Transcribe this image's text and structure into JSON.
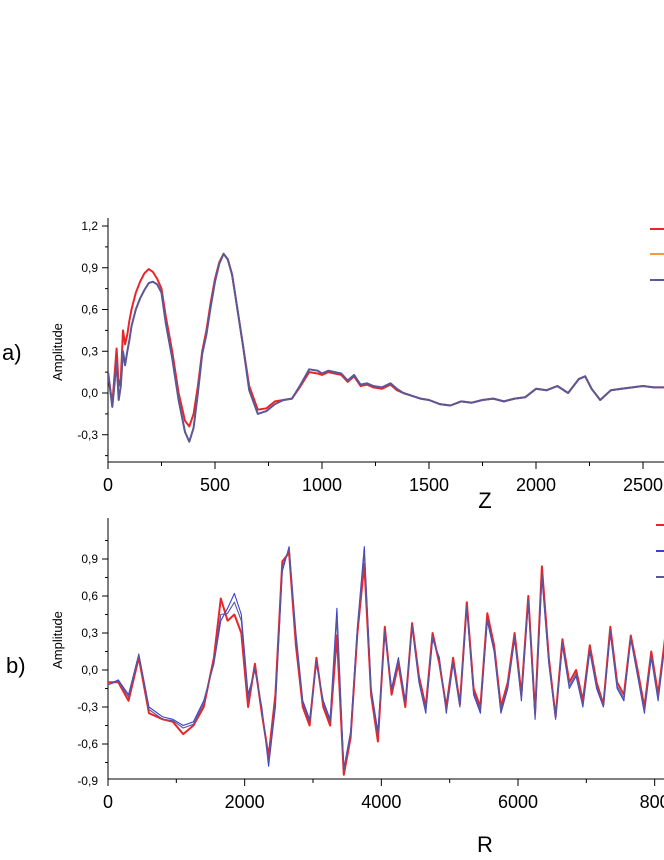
{
  "panels": [
    {
      "label": "a)"
    },
    {
      "label": "b)"
    }
  ],
  "colors": {
    "red": "#e8262a",
    "orange": "#f39a3c",
    "blue": "#3a3fd6",
    "purple": "#5b5898"
  },
  "chart_data": [
    {
      "type": "line",
      "title": "",
      "xlabel": "Z",
      "ylabel": "Amplitude",
      "xlim": [
        0,
        2600
      ],
      "ylim": [
        -0.5,
        1.2
      ],
      "xticks": [
        "0",
        "500",
        "1000",
        "1500",
        "2000",
        "2500"
      ],
      "yticks": [
        "1,2",
        "0,9",
        "0,6",
        "0,3",
        "0,0",
        "-0,3"
      ],
      "legend": "top-right, clipped",
      "series": [
        {
          "color": "red",
          "x": [
            0,
            20,
            40,
            50,
            60,
            70,
            80,
            90,
            100,
            110,
            130,
            150,
            170,
            190,
            210,
            230,
            250,
            270,
            300,
            330,
            360,
            380,
            400,
            420,
            440,
            460,
            480,
            500,
            520,
            540,
            560,
            580,
            600,
            630,
            660,
            700,
            740,
            780,
            820,
            860,
            900,
            940,
            980,
            1000,
            1030,
            1060,
            1090,
            1120,
            1150,
            1180,
            1210,
            1240,
            1280,
            1320,
            1350,
            1380,
            1420,
            1460,
            1500,
            1550,
            1600,
            1650,
            1700,
            1750,
            1800,
            1850,
            1900,
            1950,
            2000,
            2050,
            2100,
            2150,
            2200,
            2230,
            2260,
            2300,
            2350,
            2400,
            2450,
            2500,
            2550,
            2600
          ],
          "y": [
            0.15,
            -0.08,
            0.32,
            0.05,
            0.1,
            0.45,
            0.35,
            0.42,
            0.52,
            0.6,
            0.72,
            0.8,
            0.86,
            0.89,
            0.87,
            0.82,
            0.75,
            0.55,
            0.3,
            0.0,
            -0.2,
            -0.24,
            -0.15,
            0.05,
            0.3,
            0.45,
            0.65,
            0.82,
            0.94,
            1.0,
            0.96,
            0.85,
            0.65,
            0.35,
            0.05,
            -0.12,
            -0.11,
            -0.06,
            -0.05,
            -0.04,
            0.05,
            0.15,
            0.14,
            0.13,
            0.15,
            0.14,
            0.13,
            0.08,
            0.12,
            0.05,
            0.06,
            0.04,
            0.03,
            0.06,
            0.02,
            0.0,
            -0.02,
            -0.04,
            -0.05,
            -0.08,
            -0.09,
            -0.06,
            -0.07,
            -0.05,
            -0.04,
            -0.06,
            -0.04,
            -0.03,
            0.03,
            0.02,
            0.05,
            0.0,
            0.1,
            0.12,
            0.03,
            -0.05,
            0.02,
            0.03,
            0.04,
            0.05,
            0.04,
            0.04
          ]
        },
        {
          "color": "orange",
          "x": [
            0,
            20,
            40,
            50,
            60,
            70,
            80,
            90,
            100,
            110,
            130,
            150,
            170,
            190,
            210,
            230,
            250,
            270,
            300,
            330,
            360,
            380,
            400,
            420,
            440,
            460,
            480,
            500,
            520,
            540,
            560,
            580,
            600,
            630,
            660,
            700,
            740,
            780,
            820,
            860,
            900,
            940,
            980,
            1000,
            1030,
            1060,
            1090,
            1120,
            1150,
            1180,
            1210,
            1240,
            1280,
            1320,
            1350,
            1380,
            1420,
            1460,
            1500,
            1550,
            1600,
            1650,
            1700,
            1750,
            1800,
            1850,
            1900,
            1950,
            2000,
            2050,
            2100,
            2150,
            2200,
            2230,
            2260,
            2300,
            2350,
            2400,
            2450,
            2500,
            2550,
            2600
          ],
          "y": [
            0.15,
            -0.1,
            0.22,
            -0.05,
            0.05,
            0.3,
            0.2,
            0.3,
            0.38,
            0.48,
            0.6,
            0.68,
            0.74,
            0.79,
            0.8,
            0.78,
            0.72,
            0.5,
            0.25,
            -0.05,
            -0.28,
            -0.35,
            -0.25,
            0.0,
            0.28,
            0.42,
            0.62,
            0.8,
            0.93,
            1.0,
            0.96,
            0.85,
            0.65,
            0.35,
            0.02,
            -0.15,
            -0.13,
            -0.08,
            -0.05,
            -0.04,
            0.06,
            0.17,
            0.16,
            0.14,
            0.16,
            0.15,
            0.14,
            0.09,
            0.13,
            0.06,
            0.07,
            0.05,
            0.04,
            0.07,
            0.03,
            0.0,
            -0.02,
            -0.04,
            -0.05,
            -0.08,
            -0.09,
            -0.06,
            -0.07,
            -0.05,
            -0.04,
            -0.06,
            -0.04,
            -0.03,
            0.03,
            0.02,
            0.05,
            0.0,
            0.1,
            0.12,
            0.03,
            -0.05,
            0.02,
            0.03,
            0.04,
            0.05,
            0.04,
            0.04
          ]
        },
        {
          "color": "purple",
          "x": [
            0,
            20,
            40,
            50,
            60,
            70,
            80,
            90,
            100,
            110,
            130,
            150,
            170,
            190,
            210,
            230,
            250,
            270,
            300,
            330,
            360,
            380,
            400,
            420,
            440,
            460,
            480,
            500,
            520,
            540,
            560,
            580,
            600,
            630,
            660,
            700,
            740,
            780,
            820,
            860,
            900,
            940,
            980,
            1000,
            1030,
            1060,
            1090,
            1120,
            1150,
            1180,
            1210,
            1240,
            1280,
            1320,
            1350,
            1380,
            1420,
            1460,
            1500,
            1550,
            1600,
            1650,
            1700,
            1750,
            1800,
            1850,
            1900,
            1950,
            2000,
            2050,
            2100,
            2150,
            2200,
            2230,
            2260,
            2300,
            2350,
            2400,
            2450,
            2500,
            2550,
            2600
          ],
          "y": [
            0.15,
            -0.1,
            0.22,
            -0.05,
            0.05,
            0.3,
            0.2,
            0.3,
            0.38,
            0.48,
            0.6,
            0.68,
            0.74,
            0.79,
            0.8,
            0.78,
            0.72,
            0.5,
            0.25,
            -0.05,
            -0.28,
            -0.35,
            -0.25,
            0.0,
            0.28,
            0.42,
            0.62,
            0.8,
            0.93,
            1.0,
            0.96,
            0.85,
            0.65,
            0.35,
            0.02,
            -0.15,
            -0.13,
            -0.08,
            -0.05,
            -0.04,
            0.06,
            0.17,
            0.16,
            0.14,
            0.16,
            0.15,
            0.14,
            0.09,
            0.13,
            0.06,
            0.07,
            0.05,
            0.04,
            0.07,
            0.03,
            0.0,
            -0.02,
            -0.04,
            -0.05,
            -0.08,
            -0.09,
            -0.06,
            -0.07,
            -0.05,
            -0.04,
            -0.06,
            -0.04,
            -0.03,
            0.03,
            0.02,
            0.05,
            0.0,
            0.1,
            0.12,
            0.03,
            -0.05,
            0.02,
            0.03,
            0.04,
            0.05,
            0.04,
            0.04
          ]
        }
      ]
    },
    {
      "type": "line",
      "title": "",
      "xlabel": "R",
      "ylabel": "Amplitude",
      "xlim": [
        0,
        8200
      ],
      "ylim": [
        -0.9,
        1.05
      ],
      "xticks": [
        "0",
        "2000",
        "4000",
        "6000",
        "800"
      ],
      "yticks": [
        "0,9",
        "0,6",
        "0,3",
        "0,0",
        "-0,3",
        "-0,6",
        "-0,9"
      ],
      "legend": "top-right, clipped",
      "series": [
        {
          "color": "red",
          "x": [
            0,
            150,
            300,
            450,
            600,
            800,
            950,
            1100,
            1250,
            1400,
            1550,
            1650,
            1750,
            1850,
            1950,
            2050,
            2150,
            2250,
            2350,
            2450,
            2550,
            2650,
            2750,
            2850,
            2950,
            3050,
            3150,
            3250,
            3350,
            3450,
            3550,
            3650,
            3750,
            3850,
            3950,
            4050,
            4150,
            4250,
            4350,
            4450,
            4550,
            4650,
            4750,
            4850,
            4950,
            5050,
            5150,
            5250,
            5350,
            5450,
            5550,
            5650,
            5750,
            5850,
            5950,
            6050,
            6150,
            6250,
            6350,
            6450,
            6550,
            6650,
            6750,
            6850,
            6950,
            7050,
            7150,
            7250,
            7350,
            7450,
            7550,
            7650,
            7750,
            7850,
            7950,
            8050,
            8150,
            8200
          ],
          "y": [
            -0.1,
            -0.1,
            -0.25,
            0.1,
            -0.35,
            -0.4,
            -0.42,
            -0.52,
            -0.45,
            -0.3,
            0.1,
            0.58,
            0.4,
            0.45,
            0.3,
            -0.3,
            0.05,
            -0.35,
            -0.7,
            -0.2,
            0.88,
            0.95,
            0.2,
            -0.3,
            -0.45,
            0.1,
            -0.3,
            -0.45,
            0.28,
            -0.85,
            -0.55,
            0.3,
            0.86,
            -0.2,
            -0.58,
            0.35,
            -0.2,
            0.05,
            -0.3,
            0.38,
            -0.05,
            -0.3,
            0.3,
            0.05,
            -0.3,
            0.1,
            -0.28,
            0.55,
            -0.15,
            -0.3,
            0.46,
            0.2,
            -0.3,
            -0.1,
            0.3,
            -0.2,
            0.6,
            -0.35,
            0.84,
            0.1,
            -0.38,
            0.25,
            -0.1,
            0.0,
            -0.25,
            0.2,
            -0.1,
            -0.28,
            0.35,
            -0.1,
            -0.2,
            0.28,
            0.0,
            -0.3,
            0.15,
            -0.2,
            0.25,
            0.2
          ]
        },
        {
          "color": "blue",
          "x": [
            0,
            150,
            300,
            450,
            600,
            800,
            950,
            1100,
            1250,
            1400,
            1550,
            1650,
            1750,
            1850,
            1950,
            2050,
            2150,
            2250,
            2350,
            2450,
            2550,
            2650,
            2750,
            2850,
            2950,
            3050,
            3150,
            3250,
            3350,
            3450,
            3550,
            3650,
            3750,
            3850,
            3950,
            4050,
            4150,
            4250,
            4350,
            4450,
            4550,
            4650,
            4750,
            4850,
            4950,
            5050,
            5150,
            5250,
            5350,
            5450,
            5550,
            5650,
            5750,
            5850,
            5950,
            6050,
            6150,
            6250,
            6350,
            6450,
            6550,
            6650,
            6750,
            6850,
            6950,
            7050,
            7150,
            7250,
            7350,
            7450,
            7550,
            7650,
            7750,
            7850,
            7950,
            8050,
            8150,
            8200
          ],
          "y": [
            -0.12,
            -0.08,
            -0.2,
            0.13,
            -0.3,
            -0.38,
            -0.4,
            -0.45,
            -0.42,
            -0.25,
            0.05,
            0.4,
            0.5,
            0.62,
            0.45,
            -0.2,
            0.0,
            -0.3,
            -0.78,
            -0.3,
            0.8,
            1.0,
            0.3,
            -0.25,
            -0.4,
            0.05,
            -0.25,
            -0.4,
            0.5,
            -0.8,
            -0.5,
            0.35,
            1.0,
            -0.15,
            -0.5,
            0.3,
            -0.15,
            0.1,
            -0.25,
            0.35,
            -0.1,
            -0.35,
            0.25,
            0.1,
            -0.35,
            0.05,
            -0.3,
            0.5,
            -0.2,
            -0.35,
            0.4,
            0.15,
            -0.35,
            -0.15,
            0.25,
            -0.25,
            0.55,
            -0.4,
            0.75,
            0.05,
            -0.4,
            0.2,
            -0.15,
            -0.05,
            -0.3,
            0.15,
            -0.15,
            -0.3,
            0.3,
            -0.15,
            -0.25,
            0.25,
            -0.05,
            -0.35,
            0.1,
            -0.25,
            0.2,
            0.15
          ]
        },
        {
          "color": "purple",
          "x": [
            0,
            150,
            300,
            450,
            600,
            800,
            950,
            1100,
            1250,
            1400,
            1550,
            1650,
            1750,
            1850,
            1950,
            2050,
            2150,
            2250,
            2350,
            2450,
            2550,
            2650,
            2750,
            2850,
            2950,
            3050,
            3150,
            3250,
            3350,
            3450,
            3550,
            3650,
            3750,
            3850,
            3950,
            4050,
            4150,
            4250,
            4350,
            4450,
            4550,
            4650,
            4750,
            4850,
            4950,
            5050,
            5150,
            5250,
            5350,
            5450,
            5550,
            5650,
            5750,
            5850,
            5950,
            6050,
            6150,
            6250,
            6350,
            6450,
            6550,
            6650,
            6750,
            6850,
            6950,
            7050,
            7150,
            7250,
            7350,
            7450,
            7550,
            7650,
            7750,
            7850,
            7950,
            8050,
            8150,
            8200
          ],
          "y": [
            -0.12,
            -0.09,
            -0.22,
            0.12,
            -0.32,
            -0.4,
            -0.41,
            -0.47,
            -0.44,
            -0.27,
            0.07,
            0.45,
            0.46,
            0.55,
            0.4,
            -0.24,
            0.02,
            -0.32,
            -0.74,
            -0.26,
            0.84,
            0.98,
            0.26,
            -0.27,
            -0.42,
            0.07,
            -0.27,
            -0.42,
            0.42,
            -0.82,
            -0.52,
            0.33,
            0.95,
            -0.17,
            -0.53,
            0.32,
            -0.17,
            0.08,
            -0.27,
            0.36,
            -0.08,
            -0.33,
            0.27,
            0.08,
            -0.33,
            0.07,
            -0.29,
            0.52,
            -0.18,
            -0.33,
            0.42,
            0.17,
            -0.33,
            -0.13,
            0.27,
            -0.23,
            0.57,
            -0.38,
            0.78,
            0.07,
            -0.39,
            0.22,
            -0.13,
            -0.03,
            -0.28,
            0.17,
            -0.13,
            -0.29,
            0.32,
            -0.13,
            -0.23,
            0.26,
            -0.03,
            -0.33,
            0.12,
            -0.23,
            0.22,
            0.17
          ]
        }
      ]
    }
  ]
}
